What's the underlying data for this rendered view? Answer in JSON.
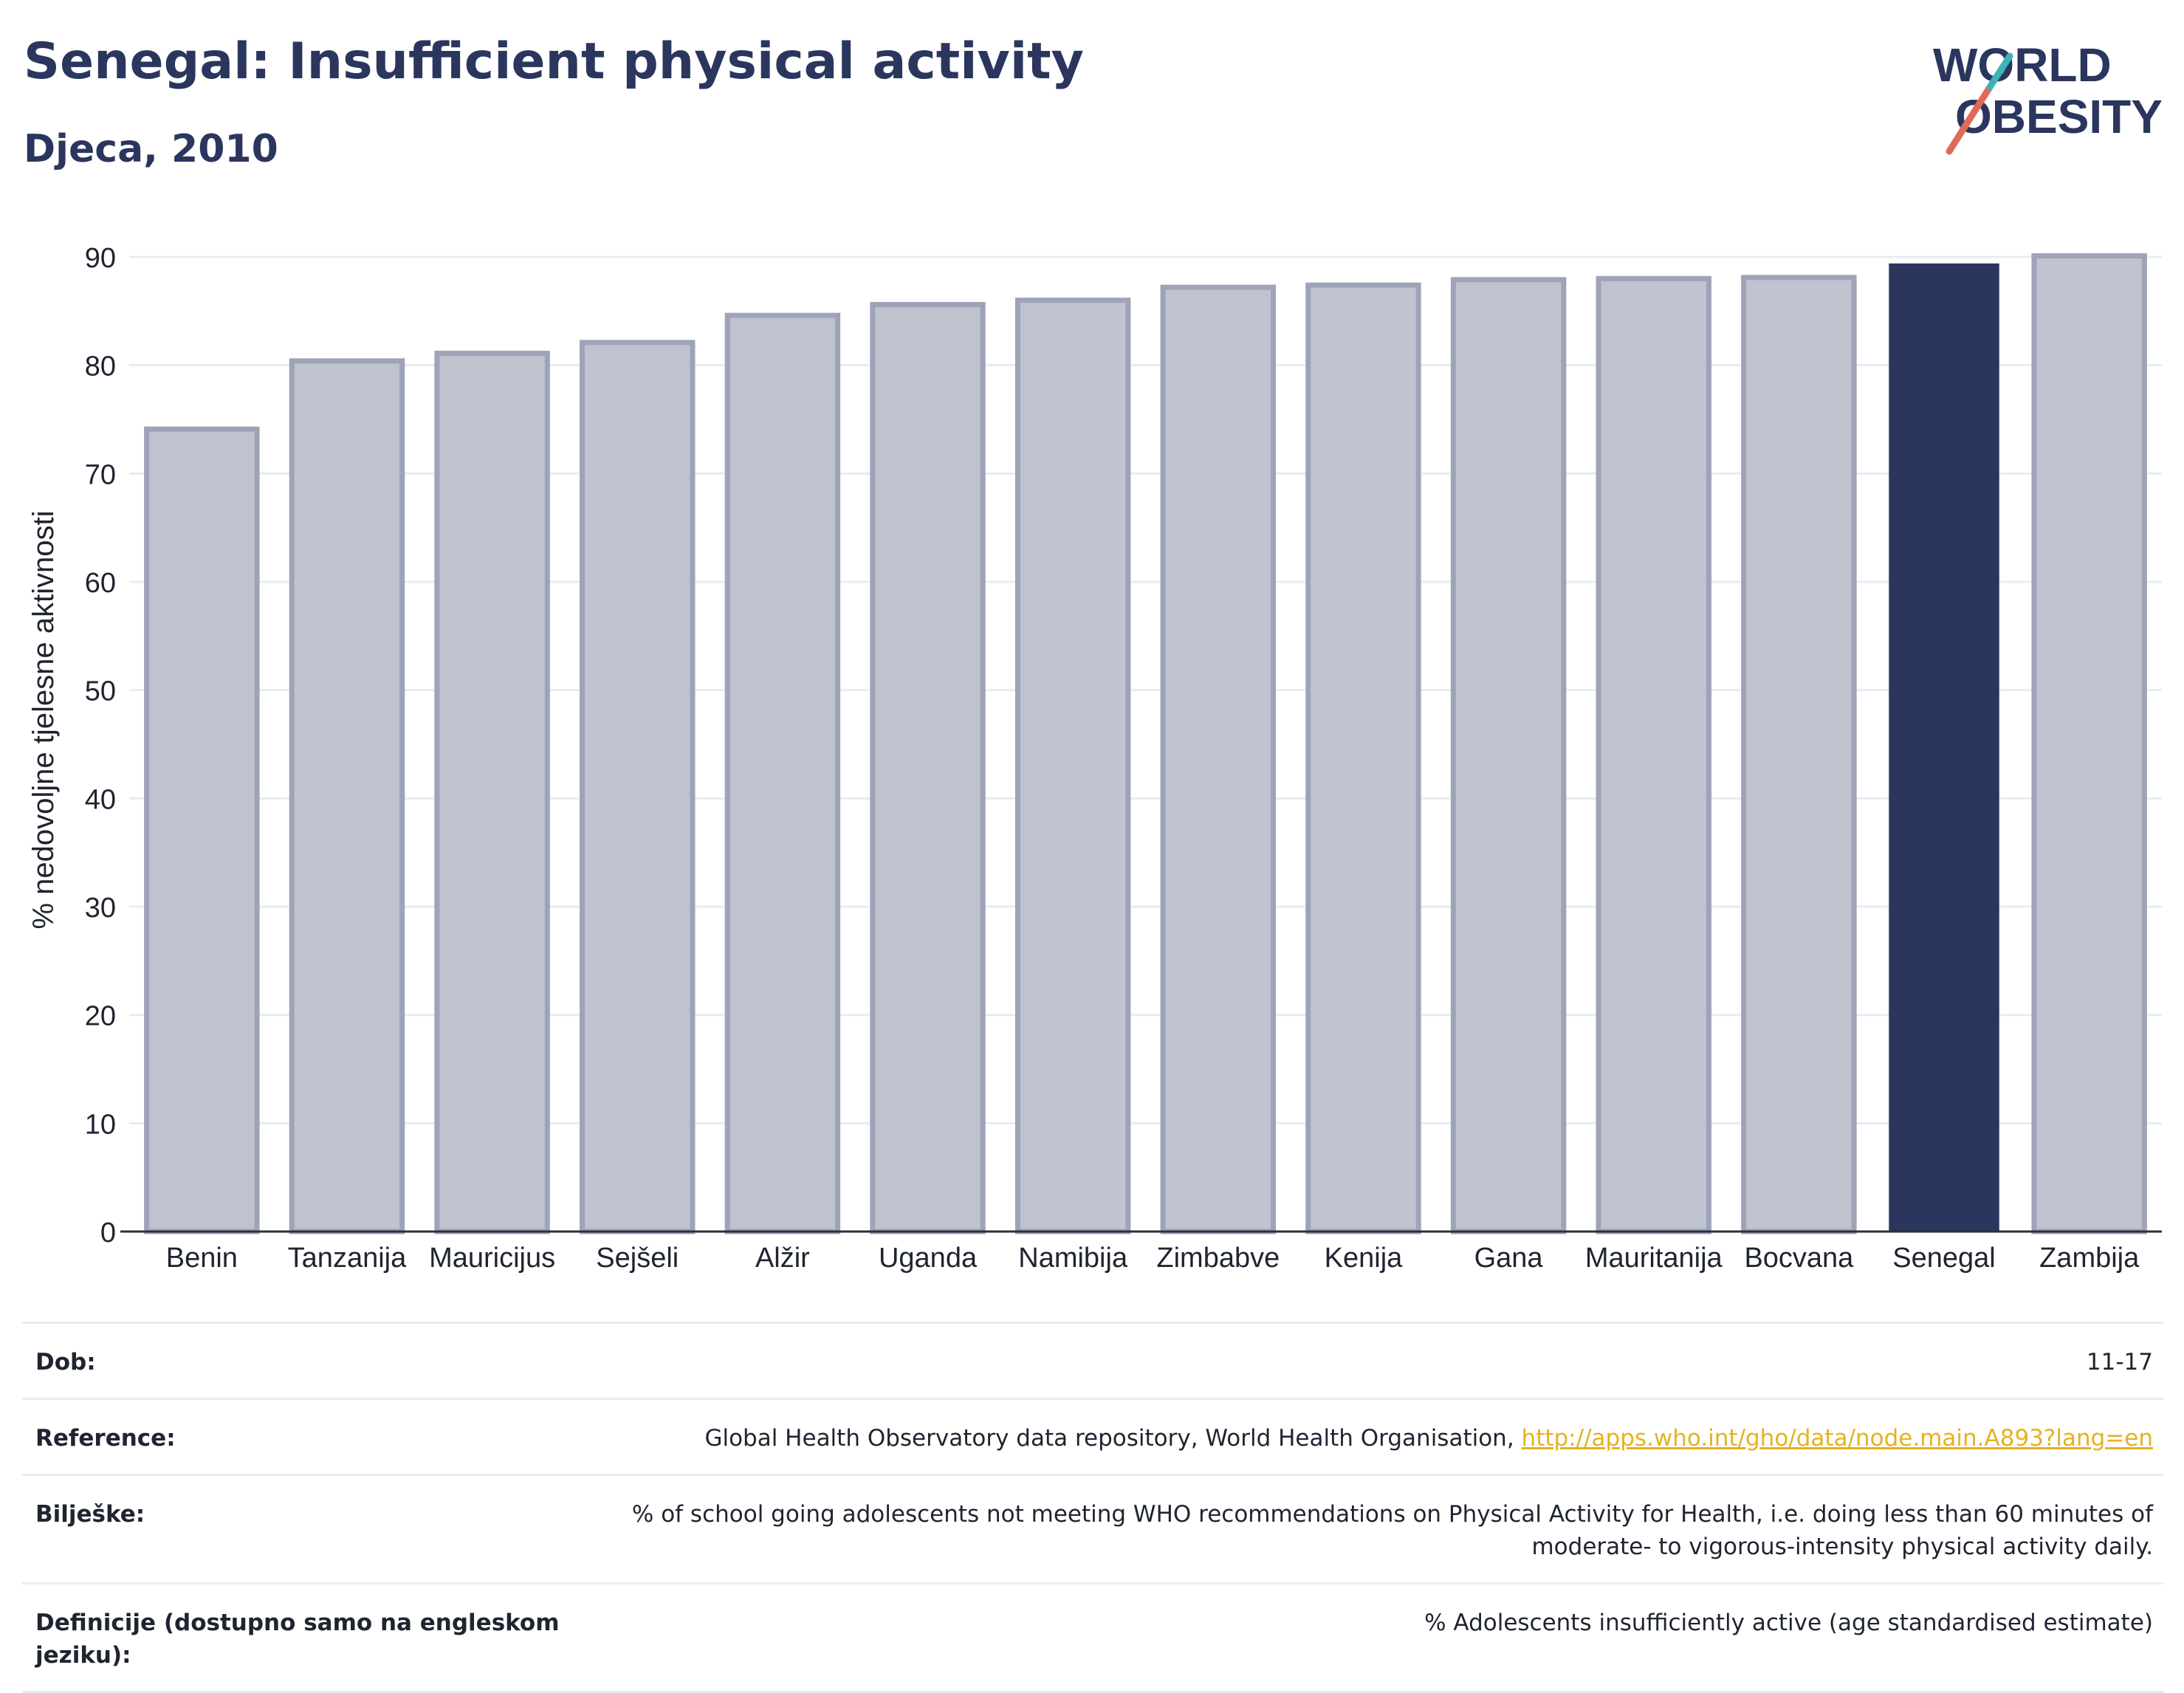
{
  "header": {
    "title": "Senegal: Insufficient physical activity",
    "subtitle": "Djeca, 2010"
  },
  "logo": {
    "line1": "WORLD",
    "line2": "OBESITY"
  },
  "chart_data": {
    "type": "bar",
    "categories": [
      "Benin",
      "Tanzanija",
      "Mauricijus",
      "Sejšeli",
      "Alžir",
      "Uganda",
      "Namibija",
      "Zimbabve",
      "Kenija",
      "Gana",
      "Mauritanija",
      "Bocvana",
      "Senegal",
      "Zambija"
    ],
    "values": [
      74.1,
      80.4,
      81.1,
      82.1,
      84.6,
      85.6,
      86.0,
      87.2,
      87.4,
      87.9,
      88.0,
      88.1,
      89.4,
      90.1
    ],
    "highlight": "Senegal",
    "ylabel": "% nedovoljne tjelesne aktivnosti",
    "ylim": [
      0,
      90
    ],
    "yticks": [
      0,
      10,
      20,
      30,
      40,
      50,
      60,
      70,
      80,
      90
    ],
    "grid": true,
    "colors": {
      "bar": "#bfc2cf",
      "bar_border": "#9ea3b8",
      "highlight": "#2b365e"
    }
  },
  "info": {
    "rows": [
      {
        "label": "Dob:",
        "value": "11-17"
      },
      {
        "label": "Reference:",
        "value": "Global Health Observatory data repository, World Health Organisation, ",
        "link": "http://apps.who.int/gho/data/node.main.A893?lang=en"
      },
      {
        "label": "Bilješke:",
        "value": "% of school going adolescents not meeting WHO recommendations on Physical Activity for Health, i.e. doing less than 60 minutes of moderate- to vigorous-intensity physical activity daily."
      },
      {
        "label": "Definicije (dostupno samo na engleskom jeziku):",
        "value": "% Adolescents insufficiently active (age standardised estimate)"
      }
    ]
  }
}
